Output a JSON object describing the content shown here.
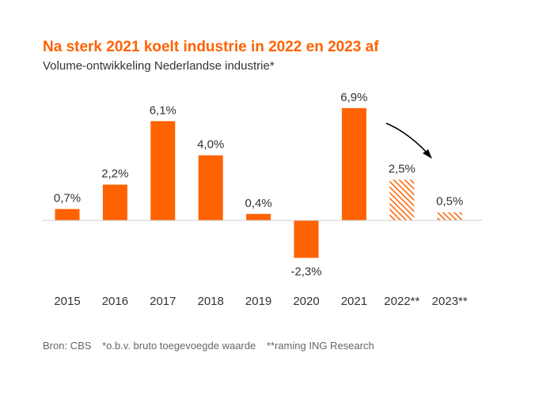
{
  "chart_data": {
    "type": "bar",
    "title": "Na sterk 2021 koelt industrie in 2022 en 2023 af",
    "subtitle": "Volume-ontwikkeling Nederlandse industrie*",
    "categories": [
      "2015",
      "2016",
      "2017",
      "2018",
      "2019",
      "2020",
      "2021",
      "2022**",
      "2023**"
    ],
    "values": [
      0.7,
      2.2,
      6.1,
      4.0,
      0.4,
      -2.3,
      6.9,
      2.5,
      0.5
    ],
    "data_labels": [
      "0,7%",
      "2,2%",
      "6,1%",
      "4,0%",
      "0,4%",
      "-2,3%",
      "6,9%",
      "2,5%",
      "0,5%"
    ],
    "forecast": [
      false,
      false,
      false,
      false,
      false,
      false,
      false,
      true,
      true
    ],
    "ylim": [
      -2.5,
      7.5
    ],
    "xlabel": "",
    "ylabel": "",
    "grid": false,
    "bar_color": "#ff6200",
    "annotation": "arrow-down-right-icon"
  },
  "footnotes": {
    "source": "Bron: CBS",
    "note1": "*o.b.v. bruto toegevoegde waarde",
    "note2": "**raming ING Research"
  }
}
